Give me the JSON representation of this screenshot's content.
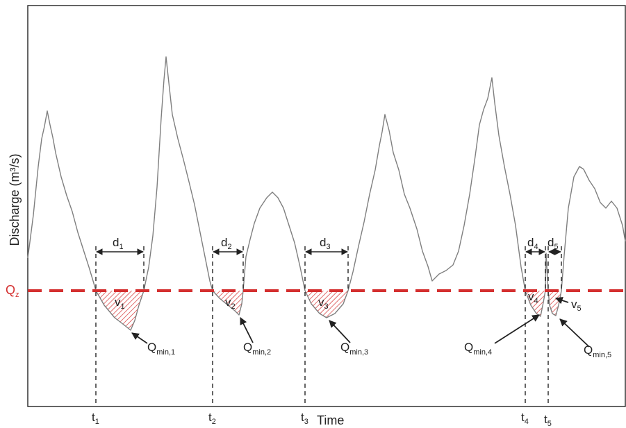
{
  "axes": {
    "x_title": "Time",
    "y_title": "Discharge (m³/s)"
  },
  "threshold": {
    "label": "Q",
    "sub": "z"
  },
  "events": [
    {
      "t": "t",
      "t_sub": "1",
      "d": "d",
      "d_sub": "1",
      "v": "v",
      "v_sub": "1",
      "q": "Q",
      "q_sub": "min,1"
    },
    {
      "t": "t",
      "t_sub": "2",
      "d": "d",
      "d_sub": "2",
      "v": "v",
      "v_sub": "2",
      "q": "Q",
      "q_sub": "min,2"
    },
    {
      "t": "t",
      "t_sub": "3",
      "d": "d",
      "d_sub": "3",
      "v": "v",
      "v_sub": "3",
      "q": "Q",
      "q_sub": "min,3"
    },
    {
      "t": "t",
      "t_sub": "4",
      "d": "d",
      "d_sub": "4",
      "v": "v",
      "v_sub": "4",
      "q": "Q",
      "q_sub": "min,4"
    },
    {
      "t": "t",
      "t_sub": "5",
      "d": "d",
      "d_sub": "5",
      "v": "v",
      "v_sub": "5",
      "q": "Q",
      "q_sub": "min,5"
    }
  ],
  "colors": {
    "hydrograph": "#7f7f7f",
    "threshold": "#d42f2f",
    "deficit_hatch": "#d42f2f",
    "lines": "#222222"
  }
}
